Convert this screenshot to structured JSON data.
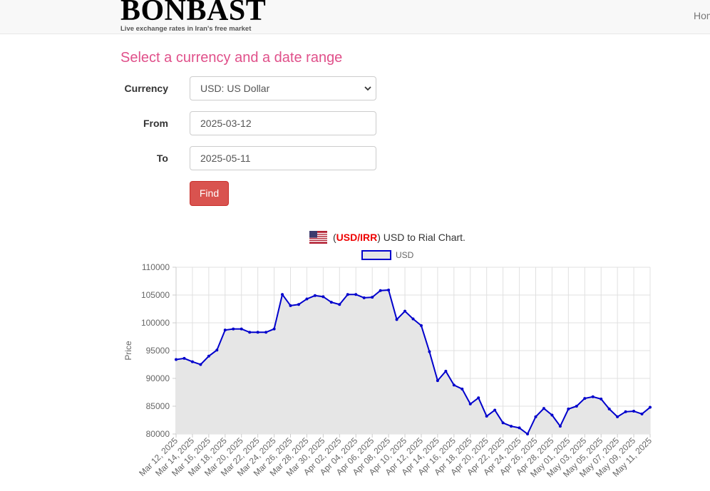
{
  "header": {
    "brand": "BONBAST",
    "tagline": "Live exchange rates in Iran's free market",
    "nav": "Home"
  },
  "form": {
    "heading": "Select a currency and a date range",
    "currency_label": "Currency",
    "currency_value": "USD: US Dollar",
    "from_label": "From",
    "from_value": "2025-03-12",
    "to_label": "To",
    "to_value": "2025-05-11",
    "button": "Find"
  },
  "chart_data": {
    "type": "line",
    "title_prefix": "(",
    "title_code": "USD/IRR",
    "title_suffix": ") USD to Rial Chart.",
    "y_label": "Price",
    "categories": [
      "Mar 12, 2025",
      null,
      "Mar 14, 2025",
      null,
      "Mar 16, 2025",
      null,
      "Mar 18, 2025",
      null,
      "Mar 20, 2025",
      null,
      "Mar 22, 2025",
      null,
      "Mar 24, 2025",
      null,
      "Mar 26, 2025",
      null,
      "Mar 28, 2025",
      null,
      "Mar 30, 2025",
      null,
      "Apr 02, 2025",
      null,
      "Apr 04, 2025",
      null,
      "Apr 06, 2025",
      null,
      "Apr 08, 2025",
      null,
      "Apr 10, 2025",
      null,
      "Apr 12, 2025",
      null,
      "Apr 14, 2025",
      null,
      "Apr 16, 2025",
      null,
      "Apr 18, 2025",
      null,
      "Apr 20, 2025",
      null,
      "Apr 22, 2025",
      null,
      "Apr 24, 2025",
      null,
      "Apr 26, 2025",
      null,
      "Apr 28, 2025",
      null,
      "May 01, 2025",
      null,
      "May 03, 2025",
      null,
      "May 05, 2025",
      null,
      "May 07, 2025",
      null,
      "May 09, 2025",
      null,
      "May 11, 2025"
    ],
    "series": [
      {
        "name": "USD",
        "color": "#0000cc",
        "fill": "#e6e6e6",
        "values": [
          93400,
          93600,
          93000,
          92500,
          94000,
          95100,
          98700,
          98900,
          98900,
          98300,
          98300,
          98300,
          98900,
          105100,
          103100,
          103300,
          104300,
          104900,
          104700,
          103700,
          103300,
          105100,
          105100,
          104500,
          104600,
          105800,
          105900,
          100600,
          102100,
          100700,
          99500,
          94800,
          89600,
          91300,
          88800,
          88100,
          85400,
          86500,
          83200,
          84300,
          82000,
          81400,
          81100,
          80000,
          83100,
          84600,
          83400,
          81400,
          84500,
          85000,
          86400,
          86700,
          86300,
          84500,
          83100,
          84000,
          84100,
          83600,
          84800
        ]
      }
    ],
    "ylim": [
      80000,
      110000
    ],
    "yticks": [
      80000,
      85000,
      90000,
      95000,
      100000,
      105000,
      110000
    ],
    "grid": true
  }
}
